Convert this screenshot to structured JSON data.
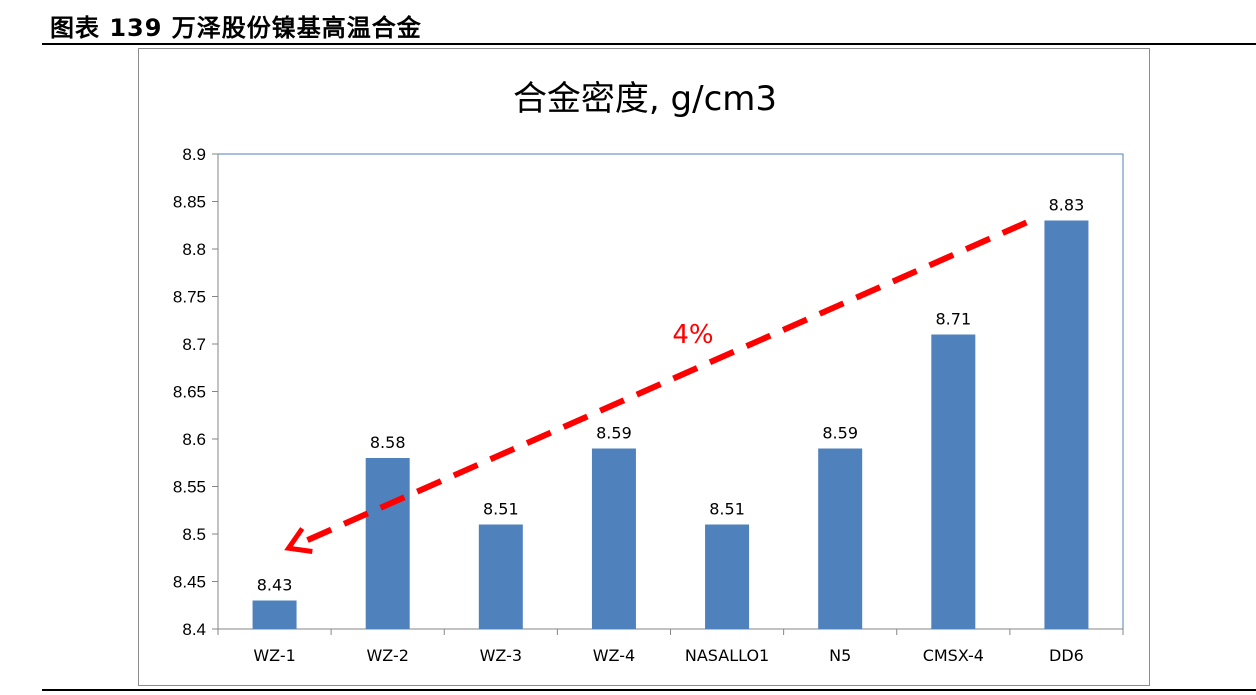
{
  "caption": "图表 139 万泽股份镍基高温合金",
  "chart_data": {
    "type": "bar",
    "title": "合金密度, g/cm3",
    "categories": [
      "WZ-1",
      "WZ-2",
      "WZ-3",
      "WZ-4",
      "NASALLO1",
      "N5",
      "CMSX-4",
      "DD6"
    ],
    "values": [
      8.43,
      8.58,
      8.51,
      8.59,
      8.51,
      8.59,
      8.71,
      8.83
    ],
    "data_labels": [
      "8.43",
      "8.58",
      "8.51",
      "8.59",
      "8.51",
      "8.59",
      "8.71",
      "8.83"
    ],
    "ylim": [
      8.4,
      8.9
    ],
    "yticks": [
      "8.4",
      "8.45",
      "8.5",
      "8.55",
      "8.6",
      "8.65",
      "8.7",
      "8.75",
      "8.8",
      "8.85",
      "8.9"
    ],
    "grid": false,
    "bar_color": "#4f81bd",
    "annotation": {
      "text": "4%",
      "color": "#ff0000",
      "style": "dashed double-headed arrow from WZ-1 to DD6"
    }
  }
}
